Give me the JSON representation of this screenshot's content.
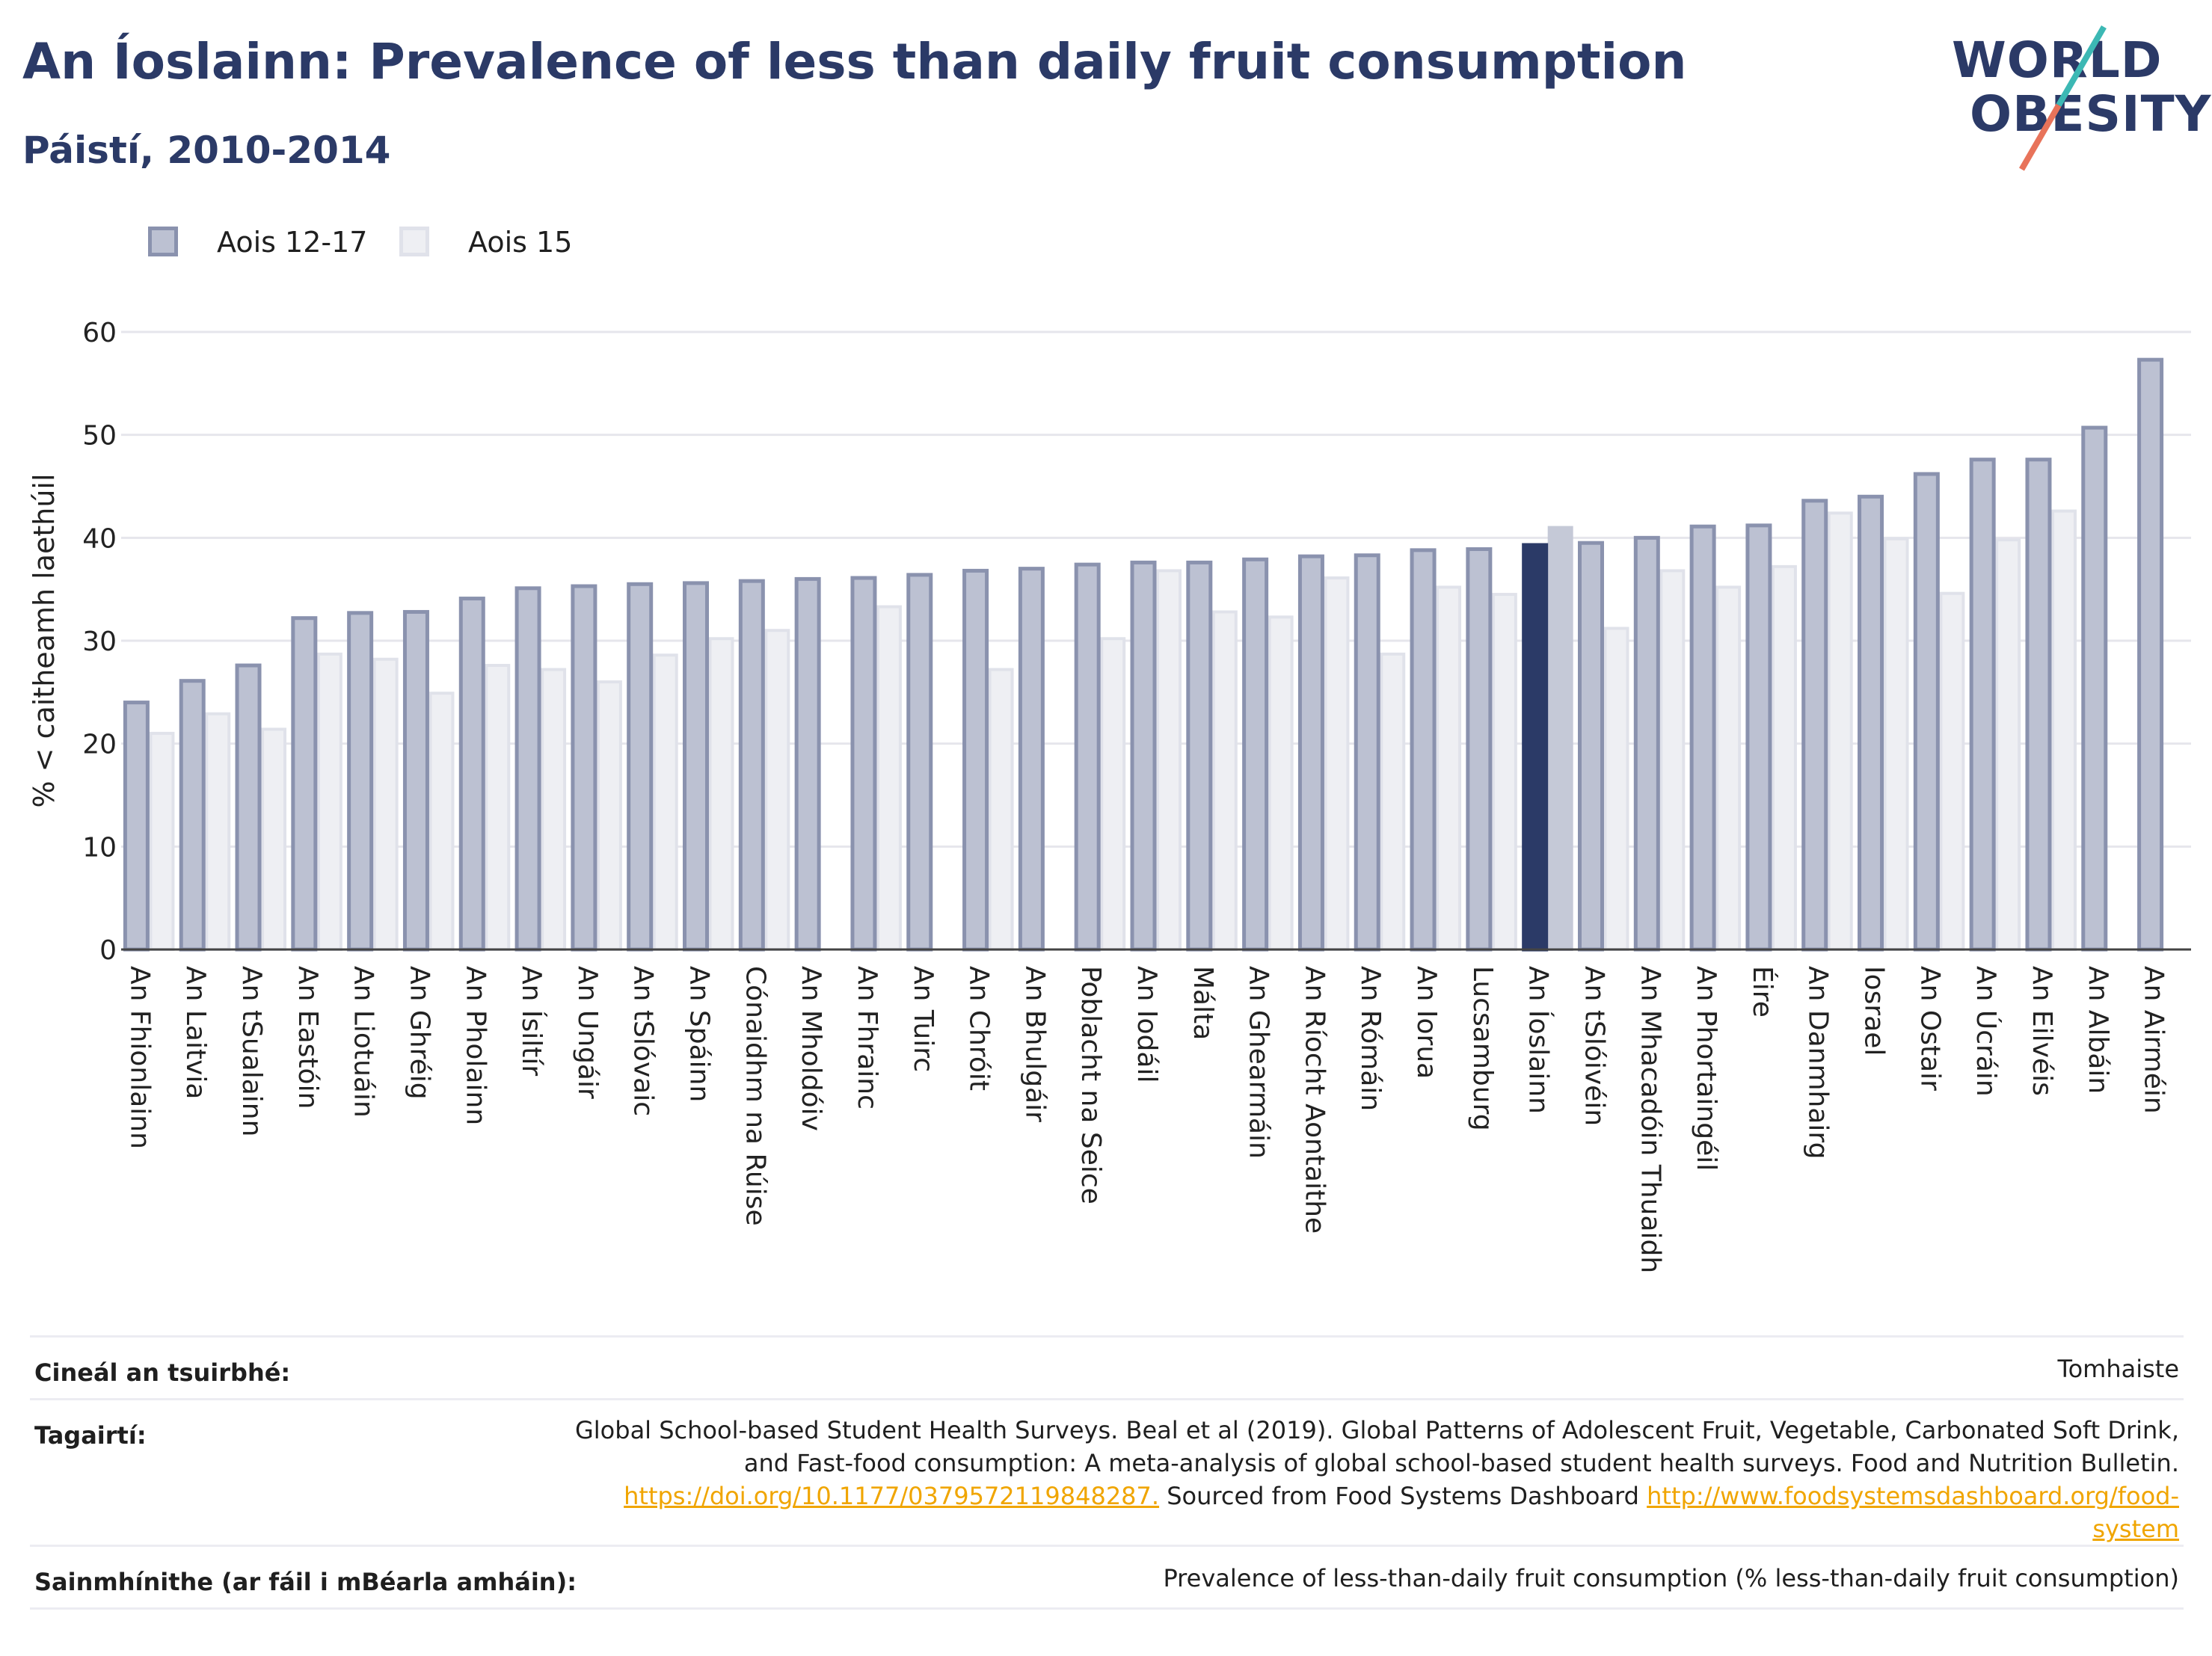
{
  "header": {
    "title": "An Íoslainn: Prevalence of less than daily fruit consumption",
    "subtitle": "Páistí, 2010-2014"
  },
  "logo": {
    "line1": "WORLD",
    "line2": "OBESITY"
  },
  "colors": {
    "series1_fill": "#bcc1d2",
    "series1_stroke": "#8a92ae",
    "series2_fill": "#eeeff3",
    "series2_stroke": "#e0e2ea",
    "highlight1": "#2b3a67",
    "highlight2": "#c5c9d7",
    "title": "#2b3a67",
    "link": "#f0a500"
  },
  "chart_data": {
    "type": "bar",
    "ylabel": "% < caitheamh laethúil",
    "ylim": [
      0,
      60
    ],
    "yticks": [
      0,
      10,
      20,
      30,
      40,
      50,
      60
    ],
    "grid": true,
    "legend_position": "top-left",
    "highlight_category": "An Íoslainn",
    "categories": [
      "An Fhionlainn",
      "An Laitvia",
      "An tSualainn",
      "An Eastóin",
      "An Liotuáin",
      "An Ghréig",
      "An Pholainn",
      "An Ísiltír",
      "An Ungáir",
      "An tSlóvaic",
      "An Spáinn",
      "Cónaidhm na Rúise",
      "An Mholdóiv",
      "An Fhrainc",
      "An Tuirc",
      "An Chróit",
      "An Bhulgáir",
      "Poblacht na Seice",
      "An Iodáil",
      "Málta",
      "An Ghearmáin",
      "An Ríocht Aontaithe",
      "An Rómáin",
      "An Iorua",
      "Lucsamburg",
      "An Íoslainn",
      "An tSlóivéin",
      "An Mhacadóin Thuaidh",
      "An Phortaingéil",
      "Éire",
      "An Danmhairg",
      "Iosrael",
      "An Ostair",
      "An Úcráin",
      "An Eilvéis",
      "An Albáin",
      "An Airméin"
    ],
    "series": [
      {
        "name": "Aois 12-17",
        "values": [
          24.0,
          26.1,
          27.6,
          32.2,
          32.7,
          32.8,
          34.1,
          35.1,
          35.3,
          35.5,
          35.6,
          35.8,
          36.0,
          36.1,
          36.4,
          36.8,
          37.0,
          37.4,
          37.6,
          37.6,
          37.9,
          38.2,
          38.3,
          38.8,
          38.9,
          39.3,
          39.5,
          40.0,
          41.1,
          41.2,
          43.6,
          44.0,
          46.2,
          47.6,
          47.6,
          50.7,
          57.3
        ]
      },
      {
        "name": "Aois 15",
        "values": [
          21.0,
          22.9,
          21.4,
          28.7,
          28.2,
          24.9,
          27.6,
          27.2,
          26.0,
          28.6,
          30.2,
          31.0,
          null,
          33.3,
          null,
          27.2,
          null,
          30.2,
          36.8,
          32.8,
          32.3,
          36.1,
          28.7,
          35.2,
          34.5,
          41.0,
          31.2,
          36.8,
          35.2,
          37.2,
          42.4,
          39.9,
          34.6,
          39.8,
          42.6,
          null,
          null
        ]
      }
    ]
  },
  "info": {
    "survey_type_label": "Cineál an tsuirbhé:",
    "survey_type_value": "Tomhaiste",
    "references_label": "Tagairtí:",
    "references_text1": "Global School-based Student Health Surveys. Beal et al (2019). Global Patterns of Adolescent Fruit, Vegetable, Carbonated Soft Drink,",
    "references_text2": "and Fast-food consumption: A meta-analysis of global school-based student health surveys. Food and Nutrition Bulletin.",
    "references_link1": "https://doi.org/10.1177/0379572119848287.",
    "references_text3": " Sourced from Food Systems Dashboard ",
    "references_link2a": "http://www.foodsystemsdashboard.org/food-",
    "references_link2b": "system",
    "definitions_label": "Sainmhínithe (ar fáil i mBéarla amháin):",
    "definitions_value": "Prevalence of less-than-daily fruit consumption (% less-than-daily fruit consumption)"
  }
}
